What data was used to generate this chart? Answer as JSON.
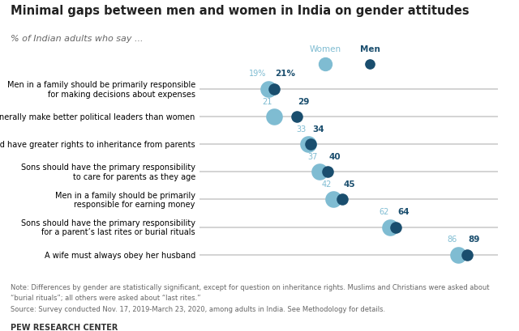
{
  "title": "Minimal gaps between men and women in India on gender attitudes",
  "subtitle": "% of Indian adults who say ...",
  "categories": [
    "Men in a family should be primarily responsible\nfor making decisions about expenses",
    "Men generally make better political leaders than women",
    "Sons should have greater rights to inheritance from parents",
    "Sons should have the primary responsibility\nto care for parents as they age",
    "Men in a family should be primarily\nresponsible for earning money",
    "Sons should have the primary responsibility\nfor a parent’s last rites or burial rituals",
    "A wife must always obey her husband"
  ],
  "women_values": [
    19,
    21,
    33,
    37,
    42,
    62,
    86
  ],
  "men_values": [
    21,
    29,
    34,
    40,
    45,
    64,
    89
  ],
  "women_color": "#7fbcd2",
  "men_color": "#1a4e6e",
  "line_color": "#cccccc",
  "note_line1": "Note: Differences by gender are statistically significant, except for question on inheritance rights. Muslims and Christians were asked about",
  "note_line2": "“burial rituals”; all others were asked about “last rites.”",
  "note_line3": "Source: Survey conducted Nov. 17, 2019-March 23, 2020, among adults in India. See Methodology for details.",
  "source_label": "PEW RESEARCH CENTER",
  "women_label": "Women",
  "men_label": "Men",
  "dot_size_women": 220,
  "dot_size_men": 110,
  "line_width": 1.2
}
